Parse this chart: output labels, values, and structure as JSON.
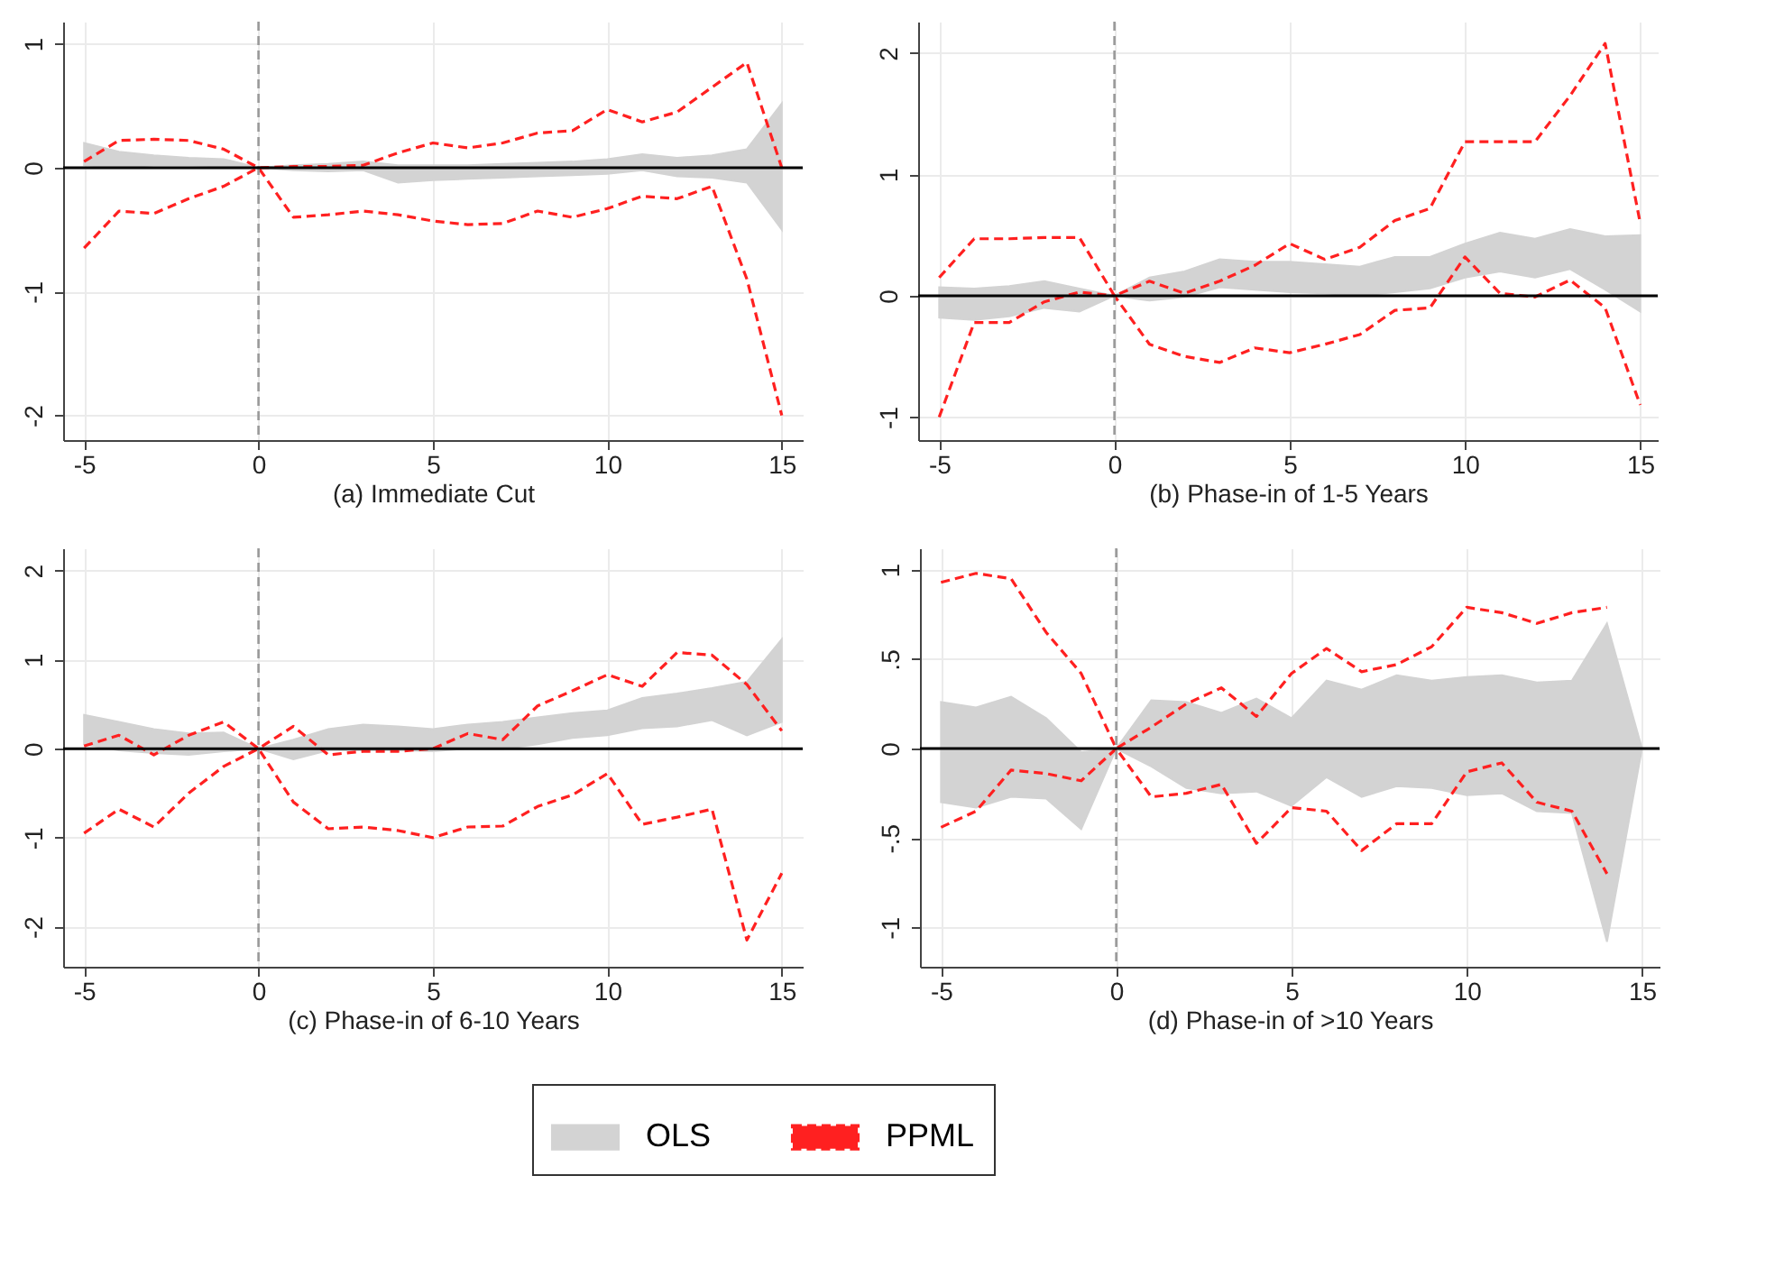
{
  "chart_data": [
    {
      "type": "area",
      "xlabel": "(a) Immediate Cut",
      "x": [
        -5,
        -4,
        -3,
        -2,
        -1,
        0,
        1,
        2,
        3,
        4,
        5,
        6,
        7,
        8,
        9,
        10,
        11,
        12,
        13,
        14,
        15
      ],
      "xlim": [
        -5.6,
        15.6
      ],
      "xticks": [
        -5,
        0,
        5,
        10,
        15
      ],
      "ylim": [
        -2.2,
        1.18
      ],
      "yticks": [
        -2,
        -1,
        0,
        1
      ],
      "grid": true,
      "legend": "bottom",
      "ref_lines": [
        {
          "axis": "x",
          "value": 0,
          "color": "#999999",
          "line_style": "dashed"
        },
        {
          "axis": "y",
          "value": 0,
          "color": "#000000",
          "line_style": "solid"
        }
      ],
      "series": [
        {
          "name": "OLS",
          "color": "#d3d3d3",
          "values": [
            null,
            null,
            null,
            null,
            null,
            null,
            null,
            null,
            null,
            null,
            null,
            null,
            null,
            null,
            null,
            null,
            null,
            null,
            null,
            null,
            null
          ],
          "upper": [
            0.2,
            0.13,
            0.1,
            0.08,
            0.07,
            0,
            0.02,
            0.03,
            0.05,
            0.02,
            0.02,
            0.02,
            0.03,
            0.04,
            0.05,
            0.07,
            0.11,
            0.08,
            0.1,
            0.15,
            0.52
          ],
          "lower": [
            0.02,
            0,
            0.02,
            0.02,
            0.01,
            0,
            -0.02,
            -0.03,
            -0.02,
            -0.12,
            -0.1,
            -0.09,
            -0.08,
            -0.07,
            -0.06,
            -0.05,
            -0.02,
            -0.07,
            -0.08,
            -0.12,
            -0.5
          ]
        },
        {
          "name": "PPML",
          "type": "line",
          "line_style": "dashed",
          "color": "#ff2020",
          "values": [
            0.05,
            0.22,
            0.23,
            0.22,
            0.15,
            0,
            0.01,
            0.01,
            0.02,
            0.12,
            0.2,
            0.16,
            0.2,
            0.28,
            0.3,
            0.47,
            0.37,
            0.45,
            0.65,
            0.85,
            0
          ]
        },
        {
          "type": "line",
          "line_style": "dashed",
          "color": "#ff2020",
          "values": [
            -0.65,
            -0.35,
            -0.37,
            -0.25,
            -0.15,
            0,
            -0.4,
            -0.38,
            -0.35,
            -0.38,
            -0.43,
            -0.46,
            -0.45,
            -0.35,
            -0.4,
            -0.33,
            -0.23,
            -0.25,
            -0.15,
            -0.9,
            -2.0
          ]
        }
      ]
    },
    {
      "type": "area",
      "xlabel": "(b) Phase-in of 1-5 Years",
      "x": [
        -5,
        -4,
        -3,
        -2,
        -1,
        0,
        1,
        2,
        3,
        4,
        5,
        6,
        7,
        8,
        9,
        10,
        11,
        12,
        13,
        14,
        15
      ],
      "xlim": [
        -5.6,
        15.5
      ],
      "xticks": [
        -5,
        0,
        5,
        10,
        15
      ],
      "ylim": [
        -1.19,
        2.26
      ],
      "yticks": [
        -1,
        0,
        1,
        2
      ],
      "grid": true,
      "ref_lines": [
        {
          "axis": "x",
          "value": 0,
          "color": "#999999",
          "line_style": "dashed"
        },
        {
          "axis": "y",
          "value": 0,
          "color": "#000000",
          "line_style": "solid"
        }
      ],
      "series": [
        {
          "color": "#d3d3d3",
          "values": [
            null,
            null,
            null,
            null,
            null,
            null,
            null,
            null,
            null,
            null,
            null,
            null,
            null,
            null,
            null,
            null,
            null,
            null,
            null,
            null,
            null
          ],
          "upper": [
            0.07,
            0.06,
            0.08,
            0.12,
            0.06,
            0,
            0.15,
            0.2,
            0.3,
            0.28,
            0.28,
            0.26,
            0.24,
            0.32,
            0.32,
            0.43,
            0.52,
            0.47,
            0.55,
            0.49,
            0.5
          ],
          "lower": [
            -0.18,
            -0.2,
            -0.17,
            -0.1,
            -0.13,
            0,
            -0.04,
            -0.01,
            0.07,
            0.05,
            0.03,
            0.02,
            0,
            0.03,
            0.06,
            0.15,
            0.2,
            0.15,
            0.22,
            0.05,
            -0.13
          ]
        },
        {
          "type": "line",
          "line_style": "dashed",
          "color": "#ff2020",
          "values": [
            0.15,
            0.47,
            0.47,
            0.48,
            0.48,
            0,
            0.12,
            0.02,
            0.12,
            0.25,
            0.43,
            0.3,
            0.4,
            0.62,
            0.72,
            1.27,
            1.27,
            1.27,
            1.65,
            2.08,
            0.6
          ]
        },
        {
          "type": "line",
          "line_style": "dashed",
          "color": "#ff2020",
          "values": [
            -1.0,
            -0.22,
            -0.22,
            -0.05,
            0.03,
            0,
            -0.4,
            -0.5,
            -0.55,
            -0.43,
            -0.47,
            -0.4,
            -0.32,
            -0.12,
            -0.1,
            0.32,
            0.02,
            -0.01,
            0.13,
            -0.1,
            -0.9
          ]
        }
      ]
    },
    {
      "type": "area",
      "xlabel": "(c) Phase-in of 6-10 Years",
      "x": [
        -5,
        -4,
        -3,
        -2,
        -1,
        0,
        1,
        2,
        3,
        4,
        5,
        6,
        7,
        8,
        9,
        10,
        11,
        12,
        13,
        14,
        15
      ],
      "xlim": [
        -5.6,
        15.6
      ],
      "xticks": [
        -5,
        0,
        5,
        10,
        15
      ],
      "ylim": [
        -2.45,
        2.25
      ],
      "yticks": [
        -2,
        -1,
        0,
        1,
        2
      ],
      "grid": true,
      "ref_lines": [
        {
          "axis": "x",
          "value": 0,
          "color": "#999999",
          "line_style": "dashed"
        },
        {
          "axis": "y",
          "value": 0,
          "color": "#000000",
          "line_style": "solid"
        }
      ],
      "series": [
        {
          "color": "#d3d3d3",
          "values": [
            null,
            null,
            null,
            null,
            null,
            null,
            null,
            null,
            null,
            null,
            null,
            null,
            null,
            null,
            null,
            null,
            null,
            null,
            null,
            null,
            null
          ],
          "upper": [
            0.38,
            0.3,
            0.22,
            0.17,
            0.18,
            0,
            0.1,
            0.22,
            0.27,
            0.25,
            0.22,
            0.27,
            0.3,
            0.35,
            0.4,
            0.43,
            0.57,
            0.62,
            0.68,
            0.75,
            1.23
          ],
          "lower": [
            0.05,
            -0.02,
            -0.05,
            -0.07,
            -0.03,
            0,
            -0.12,
            -0.02,
            -0.02,
            -0.02,
            -0.03,
            0,
            0,
            0.05,
            0.12,
            0.15,
            0.23,
            0.25,
            0.32,
            0.15,
            0.3
          ]
        },
        {
          "type": "line",
          "line_style": "dashed",
          "color": "#ff2020",
          "values": [
            0.03,
            0.15,
            -0.07,
            0.15,
            0.3,
            0,
            0.25,
            -0.07,
            -0.03,
            -0.03,
            0,
            0.17,
            0.1,
            0.48,
            0.65,
            0.83,
            0.7,
            1.08,
            1.05,
            0.72,
            0.2
          ]
        },
        {
          "type": "line",
          "line_style": "dashed",
          "color": "#ff2020",
          "values": [
            -0.95,
            -0.68,
            -0.88,
            -0.5,
            -0.2,
            0,
            -0.6,
            -0.9,
            -0.88,
            -0.92,
            -1.0,
            -0.88,
            -0.87,
            -0.65,
            -0.52,
            -0.28,
            -0.85,
            -0.77,
            -0.68,
            -2.15,
            -1.4
          ]
        }
      ]
    },
    {
      "type": "area",
      "xlabel": "(d) Phase-in of >10 Years",
      "x": [
        -5,
        -4,
        -3,
        -2,
        -1,
        0,
        1,
        2,
        3,
        4,
        5,
        6,
        7,
        8,
        9,
        10,
        11,
        12,
        13,
        14,
        15
      ],
      "xlim": [
        -5.6,
        15.5
      ],
      "xticks": [
        -5,
        0,
        5,
        10,
        15
      ],
      "ylim": [
        -1.22,
        1.12
      ],
      "yticks": [
        -1,
        {
          "value": -0.5,
          "label": "-.5"
        },
        0,
        {
          "value": 0.5,
          "label": ".5"
        },
        1
      ],
      "grid": true,
      "ref_lines": [
        {
          "axis": "x",
          "value": 0,
          "color": "#999999",
          "line_style": "dashed"
        },
        {
          "axis": "y",
          "value": 0,
          "color": "#000000",
          "line_style": "solid"
        }
      ],
      "series": [
        {
          "color": "#d3d3d3",
          "values": [
            null,
            null,
            null,
            null,
            null,
            null,
            null,
            null,
            null,
            null,
            null,
            null,
            null,
            null,
            null,
            null,
            null,
            null,
            null,
            null,
            null
          ],
          "upper": [
            0.26,
            0.23,
            0.29,
            0.17,
            -0.02,
            0,
            0.27,
            0.26,
            0.2,
            0.28,
            0.17,
            0.38,
            0.33,
            0.41,
            0.38,
            0.4,
            0.41,
            0.37,
            0.38,
            0.7,
            0
          ],
          "lower": [
            -0.3,
            -0.33,
            -0.27,
            -0.28,
            -0.45,
            0,
            -0.1,
            -0.22,
            -0.25,
            -0.24,
            -0.32,
            -0.16,
            -0.27,
            -0.21,
            -0.22,
            -0.26,
            -0.25,
            -0.35,
            -0.36,
            -1.08,
            0
          ]
        },
        {
          "type": "line",
          "line_style": "dashed",
          "color": "#ff2020",
          "values": [
            0.93,
            0.98,
            0.95,
            0.65,
            0.42,
            0,
            0.12,
            0.25,
            0.34,
            0.18,
            0.42,
            0.56,
            0.43,
            0.47,
            0.57,
            0.79,
            0.76,
            0.7,
            0.76,
            0.79,
            null
          ]
        },
        {
          "type": "line",
          "line_style": "dashed",
          "color": "#ff2020",
          "values": [
            -0.44,
            -0.35,
            -0.12,
            -0.14,
            -0.18,
            0,
            -0.27,
            -0.25,
            -0.2,
            -0.53,
            -0.33,
            -0.35,
            -0.57,
            -0.42,
            -0.42,
            -0.13,
            -0.08,
            -0.3,
            -0.35,
            -0.7,
            null
          ]
        }
      ]
    }
  ]
}
